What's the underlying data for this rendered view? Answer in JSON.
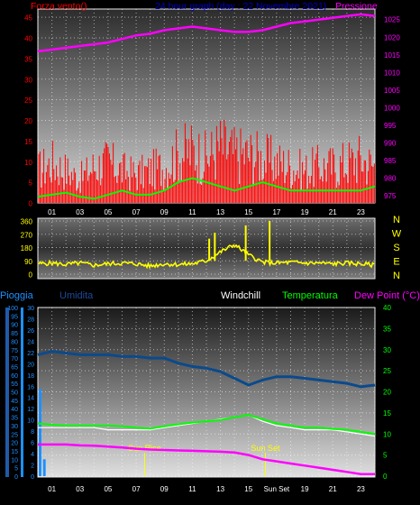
{
  "colors": {
    "wind_gust": "#ff0000",
    "wind_avg": "#00ff00",
    "pressure": "#ff00ff",
    "direction": "#ffff00",
    "rain": "#1e90ff",
    "humidity": "#0b4a8c",
    "windchill": "#ffffff",
    "temperature": "#00ff00",
    "dewpoint": "#ff00ff",
    "sun_markers": "#ffff00"
  },
  "header": {
    "wind_label": "Forza vento()",
    "title": "24 hour graph (day : 22 Novembre 2021)",
    "pressure_label": "Pressione"
  },
  "bottom_header": {
    "rain_label": "Pioggia",
    "humidity_label": "Umidita",
    "windchill_label": "Windchill",
    "temperature_label": "Temperatura",
    "dewpoint_label": "Dew Point (°C)"
  },
  "direction_labels": [
    "N",
    "W",
    "S",
    "E",
    "N"
  ],
  "sun": {
    "rise_label": "Sun Rise",
    "set_label": "Sun Set",
    "rise_hour": 7.6,
    "set_hour": 16.2
  },
  "x_ticks": [
    "01",
    "03",
    "05",
    "07",
    "09",
    "11",
    "13",
    "15",
    "17",
    "19",
    "21",
    "23"
  ],
  "bottom_x_ticks": [
    "01",
    "03",
    "05",
    "07",
    "09",
    "11",
    "13",
    "15",
    "Sun Set",
    "19",
    "21",
    "23"
  ],
  "chart_data": [
    {
      "type": "line",
      "x_unit": "hour",
      "y_left": {
        "ticks": [
          0,
          5,
          10,
          15,
          20,
          25,
          30,
          35,
          40,
          45
        ],
        "ylim": [
          0,
          47
        ]
      },
      "y_right": {
        "ticks": [
          975,
          980,
          985,
          990,
          995,
          1000,
          1005,
          1010,
          1015,
          1020,
          1025
        ],
        "ylim": [
          973,
          1028
        ]
      },
      "series": [
        {
          "name": "Forza vento()",
          "axis": "left",
          "style": "bars",
          "x": [
            0,
            1,
            2,
            3,
            4,
            5,
            6,
            7,
            8,
            9,
            10,
            11,
            12,
            13,
            14,
            15,
            16,
            17,
            18,
            19,
            20,
            21,
            22,
            23,
            24
          ],
          "y": [
            8,
            10,
            8,
            6,
            9,
            10,
            8,
            7,
            8,
            9,
            12,
            13,
            11,
            14,
            12,
            12,
            11,
            10,
            9,
            8,
            9,
            9,
            10,
            11,
            9
          ]
        },
        {
          "axis": "left",
          "style": "line",
          "x": [
            0,
            1,
            2,
            3,
            4,
            5,
            6,
            7,
            8,
            9,
            10,
            11,
            12,
            13,
            14,
            15,
            16,
            17,
            18,
            19,
            20,
            21,
            22,
            23,
            24
          ],
          "y": [
            1.5,
            2,
            2.5,
            1.5,
            1,
            2,
            3,
            2,
            2,
            3,
            5,
            6,
            5,
            4,
            3,
            4,
            5,
            4,
            3,
            3,
            3,
            3,
            3,
            3,
            4
          ]
        },
        {
          "name": "Pressione",
          "axis": "right",
          "style": "line",
          "x": [
            0,
            1,
            2,
            3,
            4,
            5,
            6,
            7,
            8,
            9,
            10,
            11,
            12,
            13,
            14,
            15,
            16,
            17,
            18,
            19,
            20,
            21,
            22,
            23,
            24
          ],
          "y": [
            1016,
            1016.5,
            1017,
            1017.5,
            1018,
            1018.5,
            1019.5,
            1020.5,
            1021,
            1022,
            1022.5,
            1023,
            1022.5,
            1022,
            1021.5,
            1021.5,
            1022,
            1023,
            1024,
            1024.5,
            1025,
            1025.5,
            1026,
            1026.5,
            1026
          ]
        }
      ]
    },
    {
      "type": "line",
      "x_unit": "hour",
      "y": {
        "ticks": [
          0,
          90,
          180,
          270,
          360
        ],
        "ylim": [
          0,
          360
        ]
      },
      "series": [
        {
          "name": "direction",
          "x": [
            0,
            1,
            2,
            3,
            4,
            5,
            6,
            7,
            8,
            9,
            10,
            11,
            12,
            13,
            14,
            15,
            16,
            17,
            18,
            19,
            20,
            21,
            22,
            23,
            24
          ],
          "y": [
            70,
            75,
            65,
            75,
            60,
            70,
            75,
            70,
            55,
            70,
            65,
            70,
            90,
            150,
            200,
            130,
            80,
            75,
            80,
            75,
            75,
            70,
            75,
            70,
            60
          ]
        }
      ]
    },
    {
      "type": "line",
      "x_unit": "hour",
      "y_left": {
        "ticks": [
          0,
          5,
          10,
          15,
          20,
          25,
          30,
          35,
          40,
          45,
          50,
          55,
          60,
          65,
          70,
          75,
          80,
          85,
          90,
          95,
          100
        ],
        "ylim": [
          0,
          100
        ]
      },
      "y_left_inner": {
        "ticks": [
          0,
          2,
          4,
          6,
          8,
          10,
          12,
          14,
          16,
          18,
          20,
          22,
          24,
          26,
          28,
          30
        ],
        "ylim": [
          0,
          30
        ]
      },
      "y_right": {
        "ticks": [
          0,
          5,
          10,
          15,
          20,
          25,
          30,
          35,
          40
        ],
        "ylim": [
          0,
          40
        ]
      },
      "series": [
        {
          "name": "Pioggia",
          "axis": "left_inner",
          "style": "bars",
          "x": [
            0,
            0.3
          ],
          "y": [
            15.5,
            3
          ]
        },
        {
          "name": "Umidita",
          "axis": "left",
          "style": "line",
          "x": [
            0,
            1,
            2,
            3,
            4,
            5,
            6,
            7,
            8,
            9,
            10,
            11,
            12,
            13,
            14,
            15,
            16,
            17,
            18,
            19,
            20,
            21,
            22,
            23,
            24
          ],
          "y": [
            72,
            74,
            73,
            72,
            72,
            72,
            71,
            71,
            70,
            70,
            67,
            65,
            64,
            62,
            58,
            54,
            57,
            59,
            59,
            58,
            57,
            56,
            55,
            53,
            54
          ]
        },
        {
          "name": "Windchill",
          "axis": "right",
          "style": "line",
          "x": [
            0,
            1,
            2,
            3,
            4,
            5,
            6,
            7,
            8,
            9,
            10,
            11,
            12,
            13,
            14,
            15,
            16,
            17,
            18,
            19,
            20,
            21,
            22,
            23,
            24
          ],
          "y": [
            11.5,
            11.5,
            11.5,
            11.5,
            11.5,
            11,
            11,
            11,
            11,
            11.5,
            12,
            12.5,
            13,
            13.5,
            14,
            14.5,
            13,
            12,
            11.5,
            11,
            11,
            11,
            10.5,
            10,
            9.5
          ]
        },
        {
          "name": "Temperatura",
          "axis": "right",
          "style": "line",
          "x": [
            0,
            1,
            2,
            3,
            4,
            5,
            6,
            7,
            8,
            9,
            10,
            11,
            12,
            13,
            14,
            15,
            16,
            17,
            18,
            19,
            20,
            21,
            22,
            23,
            24
          ],
          "y": [
            12.5,
            12.2,
            12,
            12,
            12,
            12,
            11.8,
            11.5,
            11.3,
            11.8,
            12.3,
            12.7,
            13,
            13.3,
            14,
            14.5,
            13.5,
            12.5,
            12,
            11.5,
            11.5,
            11.2,
            11,
            10.5,
            10
          ]
        },
        {
          "name": "Dew Point (°C)",
          "axis": "right",
          "style": "line",
          "x": [
            0,
            1,
            2,
            3,
            4,
            5,
            6,
            7,
            8,
            9,
            10,
            11,
            12,
            13,
            14,
            15,
            16,
            17,
            18,
            19,
            20,
            21,
            22,
            23,
            24
          ],
          "y": [
            7.5,
            7.5,
            7.5,
            7.3,
            7.2,
            7,
            6.8,
            6.5,
            6.3,
            6.2,
            6.1,
            6,
            5.9,
            5.8,
            5.6,
            5,
            4,
            3.5,
            3,
            2.5,
            2,
            1.5,
            1,
            0.5,
            0.5
          ]
        }
      ]
    }
  ]
}
